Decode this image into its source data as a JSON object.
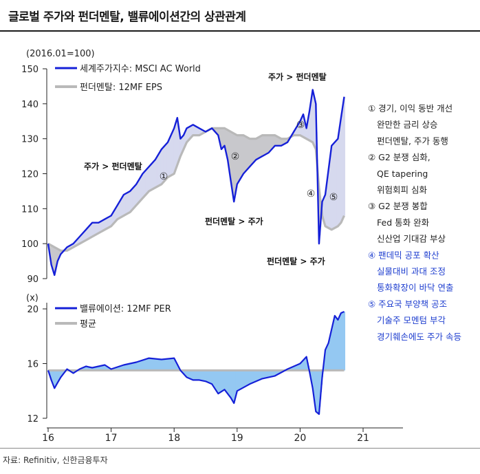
{
  "title": "글로벌 주가와 펀더멘탈, 밸류에이션간의 상관관계",
  "source": "자료: Refinitiv, 신한금융투자",
  "colors": {
    "primary": "#1520d8",
    "secondary": "#b9b9b9",
    "fill_upper": "#d6d9ee",
    "fill_lower": "#94c8f2"
  },
  "chart_data": [
    {
      "type": "line",
      "title": "",
      "unit_label": "(2016.01=100)",
      "ylim": [
        90,
        150
      ],
      "yticks": [
        "150",
        "140",
        "130",
        "120",
        "110",
        "100",
        "90"
      ],
      "legend": [
        "세계주가지수: MSCI AC World",
        "펀더멘탈: 12MF EPS"
      ],
      "series": [
        {
          "name": "세계주가지수: MSCI AC World",
          "x": [
            2016.0,
            2016.05,
            2016.1,
            2016.15,
            2016.2,
            2016.3,
            2016.4,
            2016.5,
            2016.6,
            2016.7,
            2016.8,
            2016.9,
            2017.0,
            2017.1,
            2017.2,
            2017.3,
            2017.4,
            2017.5,
            2017.6,
            2017.7,
            2017.8,
            2017.9,
            2018.0,
            2018.05,
            2018.1,
            2018.15,
            2018.2,
            2018.3,
            2018.4,
            2018.5,
            2018.6,
            2018.7,
            2018.75,
            2018.8,
            2018.85,
            2018.9,
            2018.95,
            2019.0,
            2019.1,
            2019.2,
            2019.3,
            2019.4,
            2019.5,
            2019.6,
            2019.7,
            2019.8,
            2019.9,
            2020.0,
            2020.05,
            2020.1,
            2020.15,
            2020.2,
            2020.25,
            2020.3,
            2020.35,
            2020.4,
            2020.5,
            2020.6,
            2020.65,
            2020.7
          ],
          "values": [
            100,
            94,
            91,
            95,
            97,
            99,
            100,
            102,
            104,
            106,
            106,
            107,
            108,
            111,
            114,
            115,
            117,
            120,
            122,
            124,
            127,
            129,
            133,
            136,
            130,
            131,
            133,
            134,
            133,
            132,
            133,
            131,
            127,
            128,
            124,
            118,
            112,
            117,
            120,
            122,
            124,
            125,
            126,
            128,
            128,
            129,
            132,
            135,
            137,
            133,
            138,
            144,
            140,
            100,
            112,
            114,
            128,
            130,
            136,
            142
          ],
          "annotation": "주가 > 펀더멘탈"
        },
        {
          "name": "펀더멘탈: 12MF EPS",
          "x": [
            2016.0,
            2016.1,
            2016.2,
            2016.3,
            2016.4,
            2016.5,
            2016.6,
            2016.7,
            2016.8,
            2016.9,
            2017.0,
            2017.1,
            2017.2,
            2017.3,
            2017.4,
            2017.5,
            2017.6,
            2017.7,
            2017.8,
            2017.9,
            2018.0,
            2018.1,
            2018.2,
            2018.3,
            2018.4,
            2018.5,
            2018.6,
            2018.7,
            2018.8,
            2018.9,
            2019.0,
            2019.1,
            2019.2,
            2019.3,
            2019.4,
            2019.5,
            2019.6,
            2019.7,
            2019.8,
            2019.9,
            2020.0,
            2020.1,
            2020.2,
            2020.25,
            2020.3,
            2020.35,
            2020.4,
            2020.5,
            2020.6,
            2020.65,
            2020.7
          ],
          "values": [
            100,
            99,
            98,
            98,
            99,
            100,
            101,
            102,
            103,
            104,
            105,
            107,
            108,
            109,
            111,
            113,
            115,
            116,
            117,
            119,
            120,
            125,
            129,
            131,
            131,
            132,
            133,
            133,
            133,
            132,
            131,
            131,
            130,
            130,
            131,
            131,
            131,
            130,
            130,
            131,
            131,
            130,
            129,
            127,
            116,
            108,
            105,
            104,
            105,
            106,
            108
          ],
          "annotation": "펀더멘탈 > 주가"
        }
      ]
    },
    {
      "type": "line",
      "unit_label": "(x)",
      "ylim": [
        12,
        20
      ],
      "yticks": [
        "20",
        "16",
        "12"
      ],
      "legend": [
        "밸류에이션: 12MF PER",
        "평균"
      ],
      "series": [
        {
          "name": "밸류에이션: 12MF PER",
          "x": [
            2016.0,
            2016.05,
            2016.1,
            2016.15,
            2016.2,
            2016.3,
            2016.4,
            2016.5,
            2016.6,
            2016.7,
            2016.8,
            2016.9,
            2017.0,
            2017.2,
            2017.4,
            2017.6,
            2017.8,
            2018.0,
            2018.1,
            2018.2,
            2018.3,
            2018.4,
            2018.5,
            2018.6,
            2018.7,
            2018.8,
            2018.9,
            2018.95,
            2019.0,
            2019.2,
            2019.4,
            2019.6,
            2019.8,
            2020.0,
            2020.1,
            2020.15,
            2020.2,
            2020.25,
            2020.3,
            2020.35,
            2020.4,
            2020.45,
            2020.5,
            2020.55,
            2020.6,
            2020.65,
            2020.7
          ],
          "values": [
            15.5,
            14.8,
            14.2,
            14.6,
            15.0,
            15.6,
            15.3,
            15.6,
            15.8,
            15.7,
            15.8,
            15.9,
            15.6,
            15.9,
            16.1,
            16.4,
            16.3,
            16.4,
            15.5,
            15.0,
            14.8,
            14.8,
            14.7,
            14.5,
            13.8,
            14.1,
            13.5,
            13.1,
            14.0,
            14.5,
            14.9,
            15.1,
            15.6,
            16.0,
            16.5,
            15.4,
            14.2,
            12.5,
            12.3,
            15.0,
            17.0,
            17.5,
            18.5,
            19.5,
            19.2,
            19.7,
            19.8
          ]
        },
        {
          "name": "평균",
          "x": [
            2016.0,
            2020.7
          ],
          "values": [
            15.5,
            15.5
          ]
        }
      ]
    }
  ],
  "xticks": [
    "16",
    "17",
    "18",
    "19",
    "20",
    "21"
  ],
  "annotations": {
    "upper_left": "주가 > 펀더멘탈",
    "upper_right": "주가 > 펀더멘탈",
    "mid": "펀더멘탈 > 주가",
    "lower": "펀더멘탈 > 주가"
  },
  "circles": [
    "①",
    "②",
    "③",
    "④",
    "⑤"
  ],
  "notes": [
    {
      "text": "① 경기, 이익 동반 개선",
      "blue": false
    },
    {
      "text": "완만한 금리 상승",
      "blue": false
    },
    {
      "text": "펀더멘탈, 주가 동행",
      "blue": false
    },
    {
      "text": "② G2 분쟁 심화,",
      "blue": false
    },
    {
      "text": "QE tapering",
      "blue": false
    },
    {
      "text": "위험회피 심화",
      "blue": false
    },
    {
      "text": "③ G2 분쟁 봉합",
      "blue": false
    },
    {
      "text": "Fed 통화 완화",
      "blue": false
    },
    {
      "text": "신산업 기대감 부상",
      "blue": false
    },
    {
      "text": "④ 팬데믹 공포 확산",
      "blue": true
    },
    {
      "text": "실물대비 과대 조정",
      "blue": true
    },
    {
      "text": "통화확장이 바닥 연출",
      "blue": true
    },
    {
      "text": "⑤ 주요국 부양책 공조",
      "blue": true
    },
    {
      "text": "기술주 모멘텀 부각",
      "blue": true
    },
    {
      "text": "경기훼손에도 주가 속등",
      "blue": true
    }
  ]
}
